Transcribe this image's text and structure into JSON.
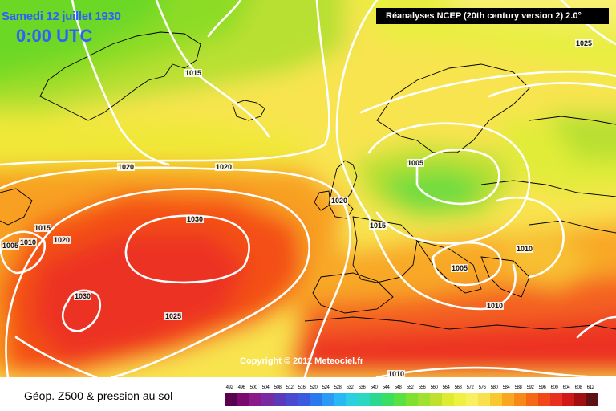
{
  "header": {
    "date_label": "Samedi 12 juillet 1930",
    "time_label": "0:00 UTC",
    "source_label": "Réanalyses NCEP (20th century version 2) 2.0°"
  },
  "copyright": "Copyright © 2011 Meteociel.fr",
  "footer": {
    "label": "Géop. Z500 & pression au sol"
  },
  "isobar_labels": [
    {
      "text": "1025"
    },
    {
      "text": "1015"
    },
    {
      "text": "1020"
    },
    {
      "text": "1020"
    },
    {
      "text": "1005"
    },
    {
      "text": "1020"
    },
    {
      "text": "1015"
    },
    {
      "text": "1010"
    },
    {
      "text": "1005"
    },
    {
      "text": "1010"
    },
    {
      "text": "1030"
    },
    {
      "text": "1030"
    },
    {
      "text": "1025"
    },
    {
      "text": "1015"
    },
    {
      "text": "1010"
    },
    {
      "text": "1005"
    },
    {
      "text": "1020"
    },
    {
      "text": "1010"
    }
  ],
  "legend": {
    "values": [
      "492",
      "496",
      "500",
      "504",
      "508",
      "512",
      "516",
      "520",
      "524",
      "528",
      "532",
      "536",
      "540",
      "544",
      "548",
      "552",
      "556",
      "560",
      "564",
      "568",
      "572",
      "576",
      "580",
      "584",
      "588",
      "592",
      "596",
      "600",
      "604",
      "608",
      "612"
    ],
    "colors": [
      "#5a0050",
      "#7a0a70",
      "#8a1a8a",
      "#7a2aa0",
      "#5a3ab8",
      "#4a4ad0",
      "#3a5ae0",
      "#2a7aee",
      "#2a9af4",
      "#2ab8f4",
      "#2ad0e0",
      "#2ad8c0",
      "#2ad890",
      "#3ade60",
      "#5ae040",
      "#80e030",
      "#a0e030",
      "#c0e030",
      "#dcec30",
      "#f0f040",
      "#f8f060",
      "#f8e050",
      "#f8c830",
      "#f8a820",
      "#f88818",
      "#f46818",
      "#f04818",
      "#e83020",
      "#d01818",
      "#a01010",
      "#601010"
    ]
  },
  "colors": {
    "title": "#2f5fff",
    "isobar": "#ffffff",
    "coastline": "#000000"
  }
}
